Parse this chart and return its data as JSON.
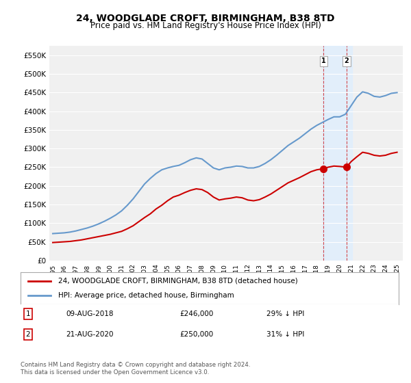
{
  "title": "24, WOODGLADE CROFT, BIRMINGHAM, B38 8TD",
  "subtitle": "Price paid vs. HM Land Registry's House Price Index (HPI)",
  "title_fontsize": 11,
  "subtitle_fontsize": 9,
  "ylabel_ticks": [
    "£0",
    "£50K",
    "£100K",
    "£150K",
    "£200K",
    "£250K",
    "£300K",
    "£350K",
    "£400K",
    "£450K",
    "£500K",
    "£550K"
  ],
  "ytick_values": [
    0,
    50000,
    100000,
    150000,
    200000,
    250000,
    300000,
    350000,
    400000,
    450000,
    500000,
    550000
  ],
  "ylim": [
    0,
    575000
  ],
  "xlim_start": 1995.0,
  "xlim_end": 2025.5,
  "background_color": "#ffffff",
  "plot_bg_color": "#f0f0f0",
  "grid_color": "#ffffff",
  "red_line_color": "#cc0000",
  "blue_line_color": "#6699cc",
  "highlight_bg_color": "#ddeeff",
  "legend_label_red": "24, WOODGLADE CROFT, BIRMINGHAM, B38 8TD (detached house)",
  "legend_label_blue": "HPI: Average price, detached house, Birmingham",
  "point1_date": "09-AUG-2018",
  "point1_price": "£246,000",
  "point1_hpi": "29% ↓ HPI",
  "point1_x": 2018.6,
  "point1_y": 246000,
  "point2_date": "21-AUG-2020",
  "point2_price": "£250,000",
  "point2_hpi": "31% ↓ HPI",
  "point2_x": 2020.6,
  "point2_y": 250000,
  "footer": "Contains HM Land Registry data © Crown copyright and database right 2024.\nThis data is licensed under the Open Government Licence v3.0.",
  "hpi_x": [
    1995.0,
    1995.5,
    1996.0,
    1996.5,
    1997.0,
    1997.5,
    1998.0,
    1998.5,
    1999.0,
    1999.5,
    2000.0,
    2000.5,
    2001.0,
    2001.5,
    2002.0,
    2002.5,
    2003.0,
    2003.5,
    2004.0,
    2004.5,
    2005.0,
    2005.5,
    2006.0,
    2006.5,
    2007.0,
    2007.5,
    2008.0,
    2008.5,
    2009.0,
    2009.5,
    2010.0,
    2010.5,
    2011.0,
    2011.5,
    2012.0,
    2012.5,
    2013.0,
    2013.5,
    2014.0,
    2014.5,
    2015.0,
    2015.5,
    2016.0,
    2016.5,
    2017.0,
    2017.5,
    2018.0,
    2018.5,
    2019.0,
    2019.5,
    2020.0,
    2020.5,
    2021.0,
    2021.5,
    2022.0,
    2022.5,
    2023.0,
    2023.5,
    2024.0,
    2024.5,
    2025.0
  ],
  "hpi_y": [
    72000,
    73000,
    74000,
    76000,
    79000,
    83000,
    87000,
    92000,
    98000,
    105000,
    113000,
    122000,
    133000,
    148000,
    165000,
    185000,
    205000,
    220000,
    233000,
    243000,
    248000,
    252000,
    255000,
    262000,
    270000,
    275000,
    272000,
    260000,
    248000,
    243000,
    248000,
    250000,
    253000,
    252000,
    248000,
    248000,
    252000,
    260000,
    270000,
    282000,
    295000,
    308000,
    318000,
    328000,
    340000,
    352000,
    362000,
    370000,
    378000,
    385000,
    385000,
    392000,
    415000,
    438000,
    452000,
    448000,
    440000,
    438000,
    442000,
    448000,
    450000
  ],
  "red_x": [
    1995.0,
    1995.5,
    1996.0,
    1996.5,
    1997.0,
    1997.5,
    1998.0,
    1998.5,
    1999.0,
    1999.5,
    2000.0,
    2000.5,
    2001.0,
    2001.5,
    2002.0,
    2002.5,
    2003.0,
    2003.5,
    2004.0,
    2004.5,
    2005.0,
    2005.5,
    2006.0,
    2006.5,
    2007.0,
    2007.5,
    2008.0,
    2008.5,
    2009.0,
    2009.5,
    2010.0,
    2010.5,
    2011.0,
    2011.5,
    2012.0,
    2012.5,
    2013.0,
    2013.5,
    2014.0,
    2014.5,
    2015.0,
    2015.5,
    2016.0,
    2016.5,
    2017.0,
    2017.5,
    2018.0,
    2018.6,
    2019.0,
    2019.5,
    2020.0,
    2020.6,
    2021.0,
    2021.5,
    2022.0,
    2022.5,
    2023.0,
    2023.5,
    2024.0,
    2024.5,
    2025.0
  ],
  "red_y": [
    48000,
    49000,
    50000,
    51000,
    53000,
    55000,
    58000,
    61000,
    64000,
    67000,
    70000,
    74000,
    78000,
    85000,
    93000,
    104000,
    115000,
    125000,
    138000,
    148000,
    160000,
    170000,
    175000,
    182000,
    188000,
    192000,
    190000,
    182000,
    170000,
    162000,
    165000,
    167000,
    170000,
    168000,
    162000,
    160000,
    163000,
    170000,
    178000,
    188000,
    198000,
    208000,
    215000,
    222000,
    230000,
    238000,
    243000,
    246000,
    250000,
    253000,
    252000,
    250000,
    265000,
    278000,
    290000,
    287000,
    282000,
    280000,
    282000,
    287000,
    290000
  ]
}
